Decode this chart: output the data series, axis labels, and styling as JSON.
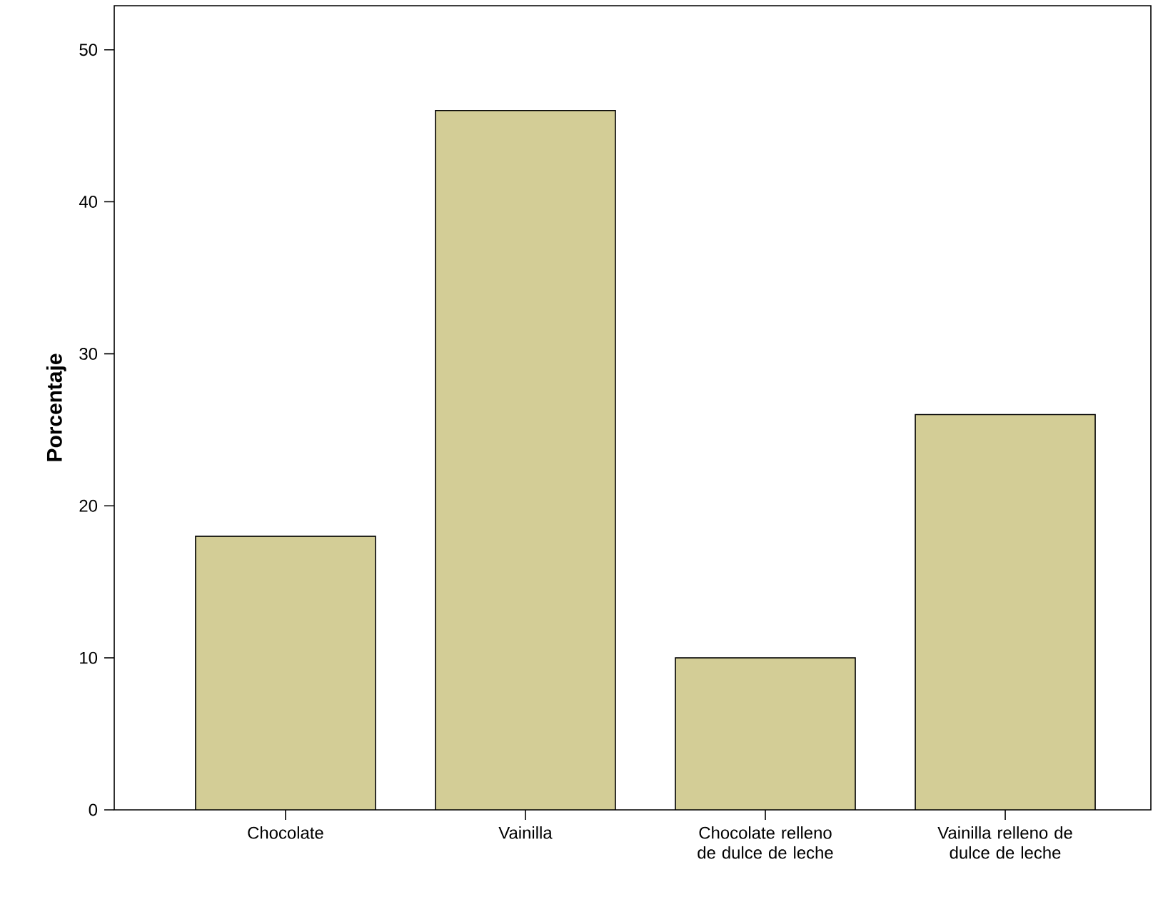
{
  "chart_data": {
    "type": "bar",
    "ylabel": "Porcentaje",
    "categories": [
      "Chocolate",
      "Vainilla",
      "Chocolate relleno de dulce de leche",
      "Vainilla relleno de dulce de leche"
    ],
    "values": [
      18,
      46,
      10,
      26
    ],
    "color": "#d3cd96",
    "ylim": [
      0,
      52.9
    ],
    "yticks": [
      0,
      10,
      20,
      30,
      40,
      50
    ]
  }
}
